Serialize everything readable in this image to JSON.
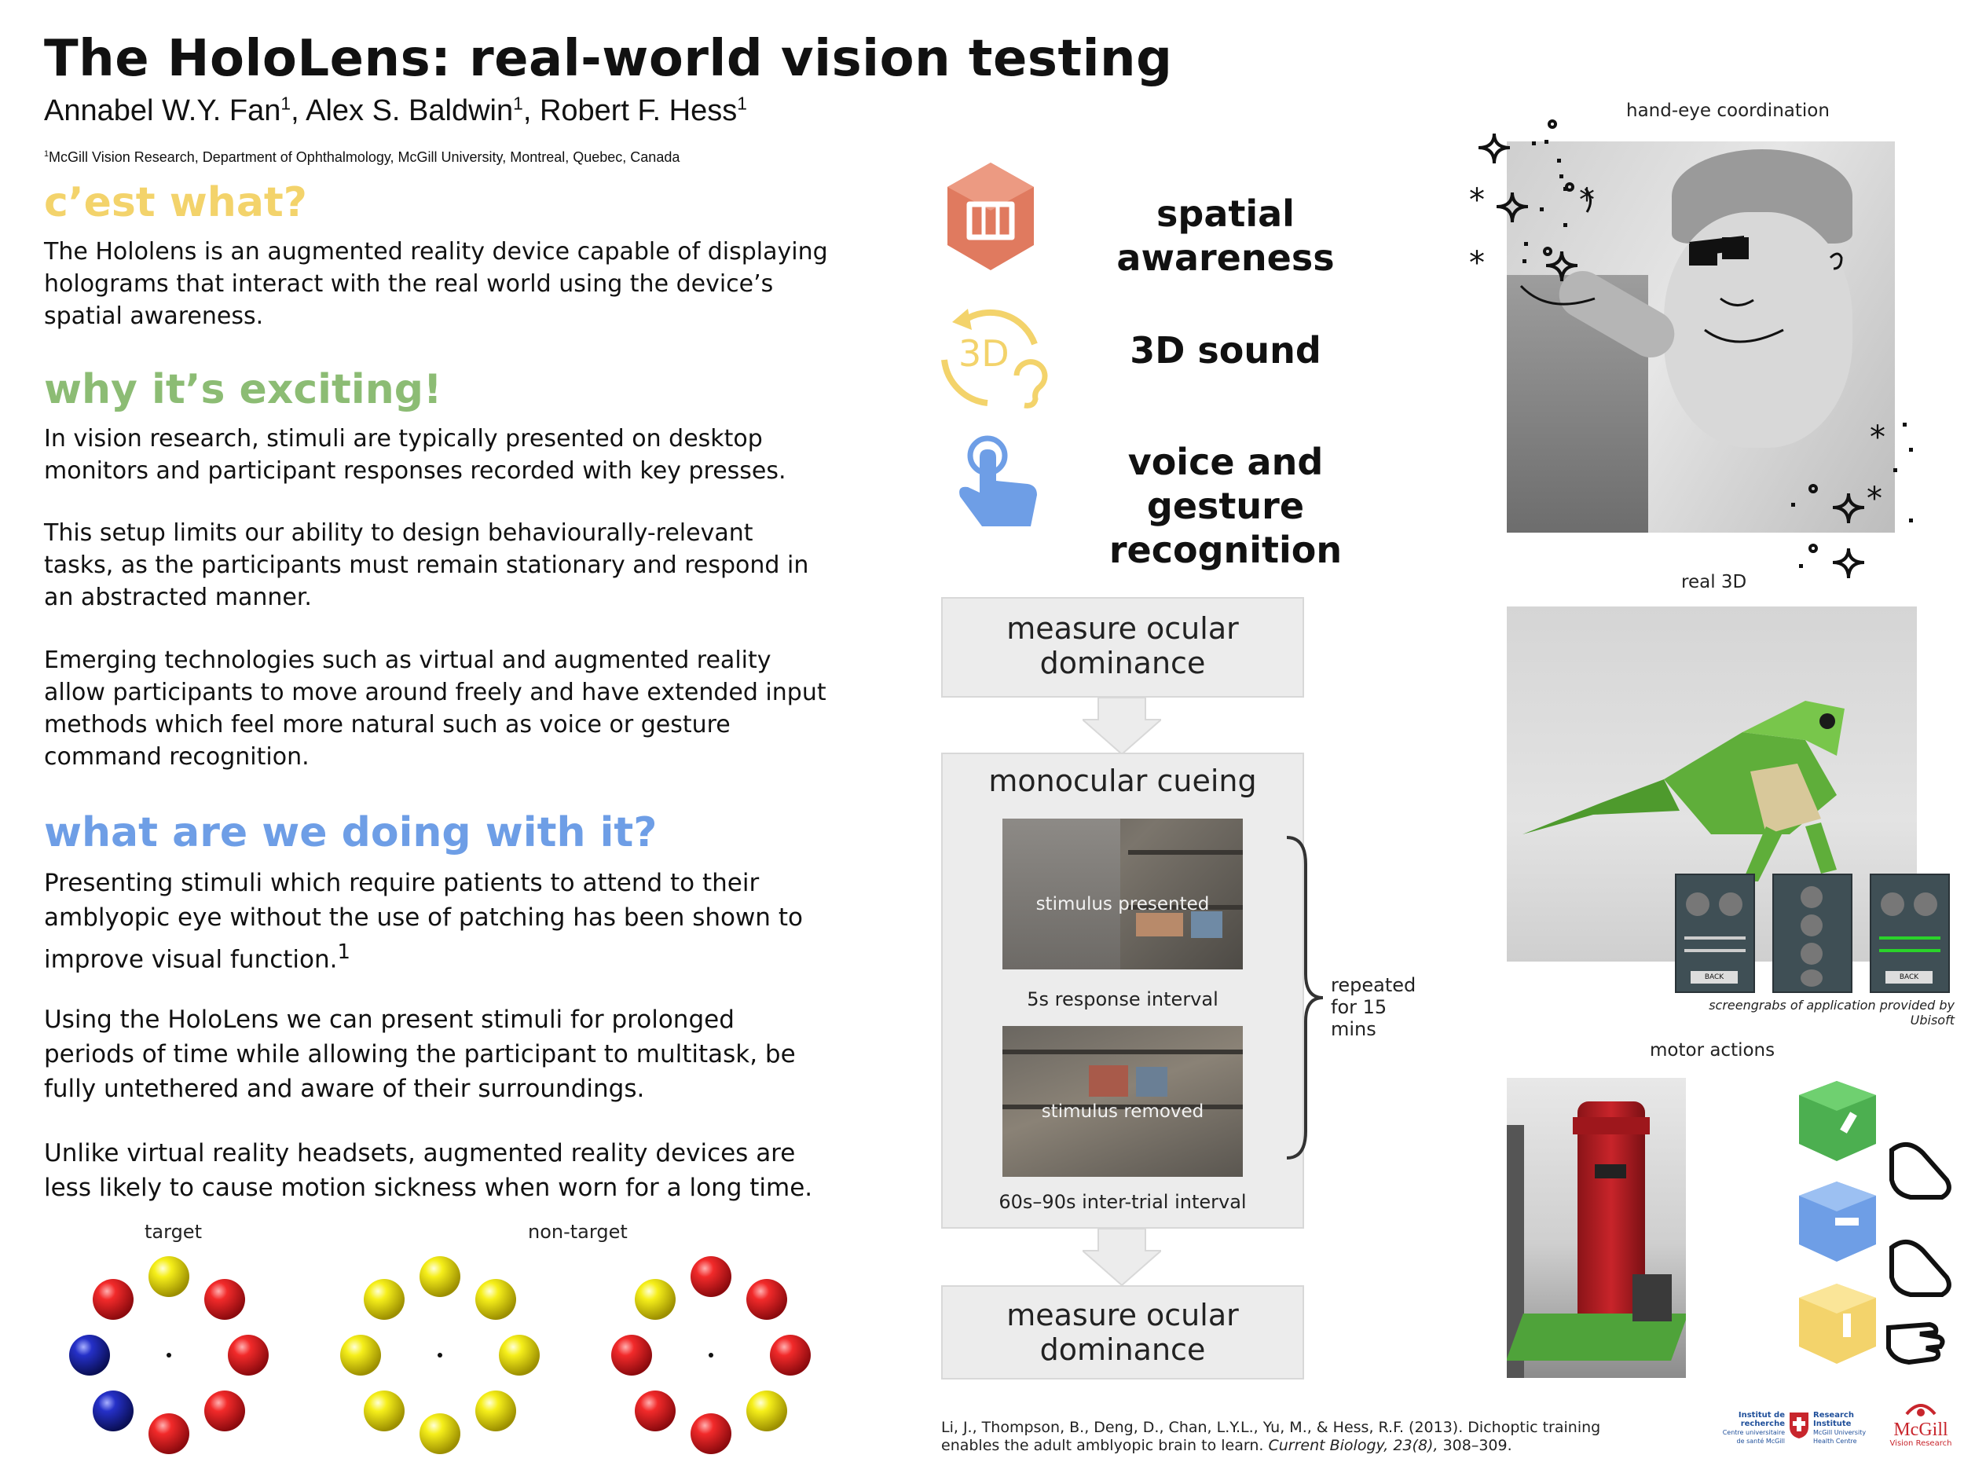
{
  "header": {
    "title": "The HoloLens: real-world vision testing",
    "authors": [
      {
        "name": "Annabel W.Y. Fan",
        "sup": "1"
      },
      {
        "name": "Alex S. Baldwin",
        "sup": "1"
      },
      {
        "name": "Robert F. Hess",
        "sup": "1"
      }
    ],
    "affiliation_sup": "1",
    "affiliation": "McGill Vision Research, Department of Ophthalmology, McGill University, Montreal, Quebec, Canada"
  },
  "sections": {
    "cest_what": {
      "heading": "c’est what?",
      "text": "The Hololens is an augmented reality device capable of displaying holograms that interact with the real world using the device’s spatial awareness."
    },
    "why": {
      "heading": "why it’s exciting!",
      "p1": "In vision research, stimuli are typically presented on desktop monitors and participant responses recorded with key presses.",
      "p2": "This setup limits our ability to design behaviourally-relevant tasks, as the participants must remain stationary and respond in an abstracted manner.",
      "p3": "Emerging technologies such as virtual and augmented reality allow participants to move around freely and have extended input methods which feel more natural such as voice or gesture command recognition."
    },
    "what_doing": {
      "heading": "what are we doing with it?",
      "p1": "Presenting stimuli which require patients to attend to their amblyopic eye without the use of patching has been shown to improve visual function.",
      "p1_sup": "1",
      "p2": "Using the HoloLens we can present stimuli for prolonged periods of time while allowing the participant to multitask, be fully untethered and aware of their surroundings.",
      "p3": "Unlike virtual reality headsets, augmented reality devices are less likely to cause motion sickness when worn for a long time."
    }
  },
  "stimuli": {
    "target_label": "target",
    "nontarget_label": "non-target"
  },
  "features": [
    {
      "label": "spatial awareness",
      "icon": "cube-map-icon",
      "color": "#e07a5f"
    },
    {
      "label": "3D sound",
      "icon": "3d-sound-icon",
      "color": "#f3d36b",
      "icon_text": "3D"
    },
    {
      "label": "voice and gesture recognition",
      "icon": "tap-hand-icon",
      "color": "#6e9ee6"
    }
  ],
  "flow": {
    "step1": "measure ocular dominance",
    "step2_title": "monocular cueing",
    "stim_presented": "stimulus presented",
    "response_interval": "5s response interval",
    "stim_removed": "stimulus removed",
    "iti": "60s–90s inter-trial interval",
    "repeated": "repeated for 15 mins",
    "step3": "measure ocular dominance"
  },
  "right": {
    "hand_eye": "hand-eye coordination",
    "real3d": "real 3D",
    "screengrab_caption": "screengrabs of application provided by Ubisoft",
    "motor": "motor actions",
    "back_label": "BACK"
  },
  "reference": {
    "text": "Li, J., Thompson, B., Deng, D., Chan, L.Y.L., Yu, M., & Hess, R.F. (2013). Dichoptic training enables the adult amblyopic brain to learn.",
    "journal": "Current Biology, 23(8),",
    "pages": "308–309."
  },
  "logos": {
    "irm_line1": "Institut de",
    "irm_line2": "recherche",
    "irm_line3": "Centre universitaire de santé McGill",
    "ri_line1": "Research",
    "ri_line2": "Institute",
    "ri_line3": "McGill University Health Centre",
    "mcgill": "McGill",
    "mcgill_sub": "Vision Research"
  },
  "colors": {
    "yellow_heading": "#f3d36b",
    "green_heading": "#8cbc74",
    "blue_heading": "#6e9ee6",
    "ball_red": "#e8121b",
    "ball_yellow": "#f5ee10",
    "ball_blue": "#1b25b8"
  }
}
